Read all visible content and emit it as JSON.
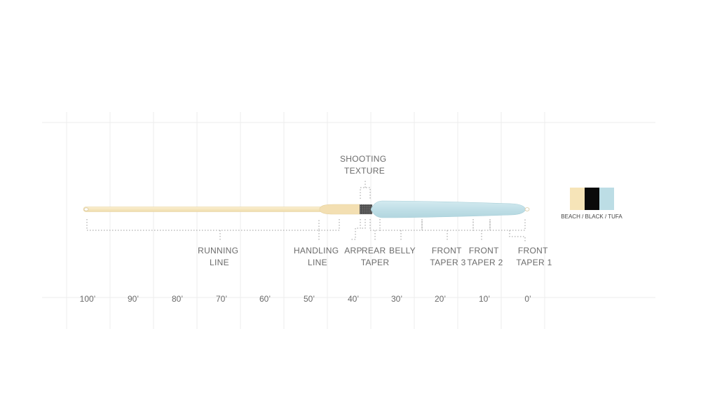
{
  "labels": {
    "shooting_texture": [
      "SHOOTING",
      "TEXTURE"
    ],
    "running_line": [
      "RUNNING",
      "LINE"
    ],
    "handling_line": [
      "HANDLING",
      "LINE"
    ],
    "arp": "ARP",
    "rear_taper": [
      "REAR",
      "TAPER"
    ],
    "belly": "BELLY",
    "front_taper_3": [
      "FRONT",
      "TAPER 3"
    ],
    "front_taper_2": [
      "FRONT",
      "TAPER 2"
    ],
    "front_taper_1": [
      "FRONT",
      "TAPER 1"
    ]
  },
  "scale_ticks": [
    "100’",
    "90’",
    "80’",
    "70’",
    "60’",
    "50’",
    "40’",
    "30’",
    "20’",
    "10’",
    "0’"
  ],
  "legend": {
    "text": "BEACH / BLACK / TUFA",
    "colors": {
      "beach": "#f6e4b8",
      "black": "#0a0a0a",
      "tufa": "#bcdde5"
    }
  },
  "colors": {
    "running_line": "#f6e4b8",
    "handling_line": "#f3dfb2",
    "shooting_texture": "#555555",
    "head": "#c2e0e8",
    "text": "#6b6b6b"
  }
}
